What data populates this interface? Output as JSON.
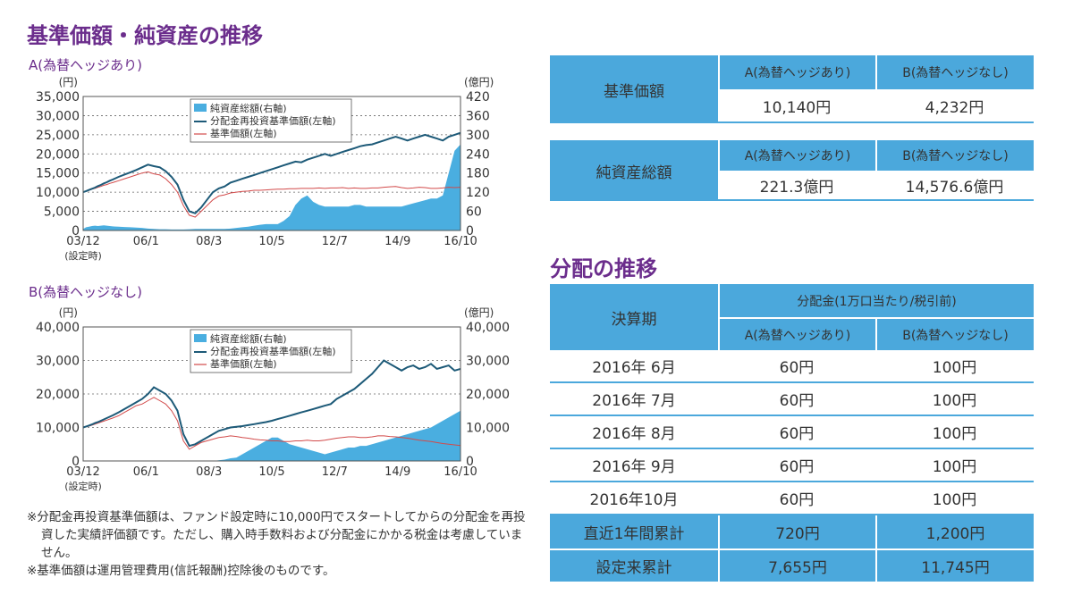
{
  "page": {
    "title1": "基準価額・純資産の推移",
    "title2": "分配の推移",
    "notes": [
      "※分配金再投資基準価額は、ファンド設定時に10,000円でスタートしてからの分配金を再投資した実績評価額です。ただし、購入時手数料および分配金にかかる税金は考慮していません。",
      "※基準価額は運用管理費用(信託報酬)控除後のものです。"
    ]
  },
  "colors": {
    "area": "#4aaee0",
    "reinvest": "#1d5a78",
    "nav": "#d24a4a",
    "header": "#4ba8dc",
    "title": "#6b2d8c"
  },
  "chart_data": [
    {
      "type": "line",
      "label": "A(為替ヘッジあり)",
      "left_unit": "(円)",
      "right_unit": "(億円)",
      "left_ylim": [
        0,
        35000
      ],
      "right_ylim": [
        0,
        420
      ],
      "left_ticks": [
        "0",
        "5,000",
        "10,000",
        "15,000",
        "20,000",
        "25,000",
        "30,000",
        "35,000"
      ],
      "right_ticks": [
        "0",
        "60",
        "120",
        "180",
        "240",
        "300",
        "360",
        "420"
      ],
      "x_ticks": [
        "03/12",
        "06/1",
        "08/3",
        "10/5",
        "12/7",
        "14/9",
        "16/10"
      ],
      "x_sub": "(設定時)",
      "legend": [
        "純資産総額(右軸)",
        "分配金再投資基準価額(左軸)",
        "基準価額(左軸)"
      ],
      "x": [
        0,
        0.1,
        0.2,
        0.3,
        0.4,
        0.5,
        0.6,
        0.7,
        0.8,
        0.9,
        1,
        1.2,
        1.4,
        1.6,
        1.8,
        2,
        2.2,
        2.4,
        2.6,
        2.8,
        3,
        3.2,
        3.4,
        3.6,
        3.8,
        4,
        4.2,
        4.4,
        4.6,
        4.8,
        5,
        5.2,
        5.4,
        5.6,
        5.8,
        6,
        6.2,
        6.4,
        6.6,
        6.8,
        7,
        7.2,
        7.4,
        7.6,
        7.8,
        8,
        8.2,
        8.4,
        8.6,
        8.8,
        9,
        9.2,
        9.4,
        9.6,
        9.8,
        10,
        10.2,
        10.4,
        10.6,
        10.8,
        11,
        11.2,
        11.4,
        11.6,
        11.8,
        12,
        12.2,
        12.4,
        12.6,
        12.8
      ],
      "series": [
        {
          "name": "純資産総額(右軸)",
          "axis": "right",
          "values": [
            5,
            10,
            12,
            14,
            15,
            14,
            15,
            16,
            15,
            14,
            13,
            12,
            11,
            10,
            9,
            8,
            6,
            5,
            4,
            4,
            3,
            3,
            3,
            4,
            5,
            5,
            5,
            5,
            5,
            5,
            6,
            8,
            10,
            12,
            15,
            18,
            20,
            20,
            20,
            30,
            45,
            80,
            100,
            110,
            90,
            80,
            75,
            75,
            75,
            75,
            75,
            80,
            80,
            75,
            75,
            75,
            75,
            75,
            75,
            75,
            80,
            85,
            90,
            95,
            100,
            100,
            110,
            180,
            250,
            270
          ]
        },
        {
          "name": "分配金再投資基準価額(左軸)",
          "axis": "left",
          "values": [
            10000,
            10300,
            10600,
            10900,
            11200,
            11600,
            11900,
            12300,
            12600,
            13000,
            13300,
            14000,
            14600,
            15200,
            15800,
            16500,
            17200,
            16800,
            16500,
            15500,
            14000,
            12000,
            8000,
            5000,
            4500,
            6000,
            8000,
            10000,
            11000,
            11500,
            12500,
            13000,
            13500,
            14000,
            14500,
            15000,
            15500,
            16000,
            16500,
            17000,
            17500,
            18000,
            17800,
            18500,
            19000,
            19500,
            20000,
            19500,
            20000,
            20500,
            21000,
            21500,
            22000,
            22300,
            22500,
            23000,
            23500,
            24000,
            24500,
            24000,
            23500,
            24000,
            24500,
            25000,
            24500,
            24000,
            23500,
            24500,
            25000,
            25500
          ]
        },
        {
          "name": "基準価額(左軸)",
          "axis": "left",
          "values": [
            10000,
            10200,
            10500,
            10800,
            11000,
            11300,
            11500,
            11800,
            12000,
            12300,
            12500,
            13000,
            13500,
            14000,
            14500,
            15000,
            15300,
            14800,
            14500,
            13500,
            12000,
            10000,
            6500,
            4000,
            3500,
            5000,
            6500,
            8000,
            9000,
            9300,
            9800,
            10000,
            10200,
            10300,
            10500,
            10500,
            10600,
            10700,
            10800,
            10800,
            10900,
            10900,
            11000,
            11000,
            11000,
            11100,
            11000,
            11100,
            11100,
            11200,
            11000,
            11100,
            11000,
            11000,
            11100,
            11100,
            11300,
            11400,
            11500,
            11200,
            11000,
            11100,
            11300,
            11200,
            11000,
            11000,
            11100,
            11300,
            11200,
            11300
          ]
        }
      ]
    },
    {
      "type": "line",
      "label": "B(為替ヘッジなし)",
      "left_unit": "(円)",
      "right_unit": "(億円)",
      "left_ylim": [
        0,
        40000
      ],
      "right_ylim": [
        0,
        40000
      ],
      "left_ticks": [
        "0",
        "10,000",
        "20,000",
        "30,000",
        "40,000"
      ],
      "right_ticks": [
        "0",
        "10,000",
        "20,000",
        "30,000",
        "40,000"
      ],
      "x_ticks": [
        "03/12",
        "06/1",
        "08/3",
        "10/5",
        "12/7",
        "14/9",
        "16/10"
      ],
      "x_sub": "(設定時)",
      "legend": [
        "純資産総額(右軸)",
        "分配金再投資基準価額(左軸)",
        "基準価額(左軸)"
      ],
      "x": [
        0,
        0.1,
        0.2,
        0.3,
        0.4,
        0.5,
        0.6,
        0.7,
        0.8,
        0.9,
        1,
        1.2,
        1.4,
        1.6,
        1.8,
        2,
        2.2,
        2.4,
        2.6,
        2.8,
        3,
        3.2,
        3.4,
        3.6,
        3.8,
        4,
        4.2,
        4.4,
        4.6,
        4.8,
        5,
        5.2,
        5.4,
        5.6,
        5.8,
        6,
        6.2,
        6.4,
        6.6,
        6.8,
        7,
        7.2,
        7.4,
        7.6,
        7.8,
        8,
        8.2,
        8.4,
        8.6,
        8.8,
        9,
        9.2,
        9.4,
        9.6,
        9.8,
        10,
        10.2,
        10.4,
        10.6,
        10.8,
        11,
        11.2,
        11.4,
        11.6,
        11.8,
        12,
        12.2,
        12.4,
        12.6,
        12.8
      ],
      "series": [
        {
          "name": "純資産総額(右軸)",
          "axis": "right",
          "values": [
            0,
            0,
            0,
            0,
            0,
            0,
            0,
            0,
            0,
            0,
            0,
            0,
            0,
            0,
            0,
            0,
            0,
            0,
            0,
            0,
            0,
            0,
            0,
            0,
            0,
            0,
            0,
            0,
            200,
            400,
            800,
            1000,
            2000,
            3000,
            4000,
            5000,
            6000,
            7000,
            7000,
            6000,
            5000,
            4500,
            4000,
            3500,
            3000,
            2500,
            2000,
            2500,
            3000,
            3500,
            4000,
            4000,
            4500,
            4500,
            5000,
            5500,
            6000,
            6500,
            7000,
            7500,
            8000,
            8500,
            9000,
            9500,
            10000,
            11000,
            12000,
            13000,
            14000,
            15000
          ]
        },
        {
          "name": "分配金再投資基準価額(左軸)",
          "axis": "left",
          "values": [
            10000,
            10300,
            10600,
            10900,
            11300,
            11600,
            12000,
            12400,
            12800,
            13200,
            13600,
            14500,
            15500,
            16500,
            17500,
            18500,
            20000,
            22000,
            21000,
            20000,
            18000,
            15000,
            8000,
            4500,
            5000,
            6000,
            7000,
            8000,
            9000,
            9500,
            10000,
            10200,
            10400,
            10700,
            11000,
            11300,
            11600,
            12000,
            12500,
            13000,
            13500,
            14000,
            14500,
            15000,
            15500,
            16000,
            16500,
            17000,
            18500,
            19500,
            20500,
            21500,
            23000,
            24500,
            26000,
            28000,
            30000,
            29000,
            28000,
            27000,
            28000,
            28500,
            27500,
            28000,
            29000,
            27500,
            28000,
            28500,
            27000,
            27500
          ]
        },
        {
          "name": "基準価額(左軸)",
          "axis": "left",
          "values": [
            10000,
            10200,
            10400,
            10700,
            11000,
            11300,
            11600,
            11900,
            12200,
            12500,
            12800,
            13500,
            14500,
            15500,
            16500,
            17000,
            18000,
            19000,
            18000,
            17000,
            15000,
            12000,
            6000,
            3500,
            4500,
            5500,
            6000,
            6500,
            7000,
            7200,
            7500,
            7300,
            7000,
            6800,
            6500,
            6300,
            6200,
            6000,
            6000,
            5800,
            5800,
            6000,
            6000,
            6200,
            6000,
            6000,
            6200,
            6500,
            6800,
            7000,
            7200,
            7200,
            7000,
            7000,
            7200,
            7500,
            7500,
            7300,
            7200,
            7000,
            6800,
            6500,
            6200,
            6000,
            5800,
            5500,
            5200,
            5000,
            4800,
            4600
          ]
        }
      ]
    }
  ],
  "table1": {
    "col_a": "A(為替ヘッジあり)",
    "col_b": "B(為替ヘッジなし)",
    "rows": [
      {
        "label": "基準価額",
        "a": "10,140円",
        "b": "4,232円"
      },
      {
        "label": "純資産総額",
        "a": "221.3億円",
        "b": "14,576.6億円"
      }
    ]
  },
  "table2": {
    "period_header": "決算期",
    "dist_header": "分配金(1万口当たり/税引前)",
    "col_a": "A(為替ヘッジあり)",
    "col_b": "B(為替ヘッジなし)",
    "rows": [
      {
        "period": "2016年 6月",
        "a": "60円",
        "b": "100円"
      },
      {
        "period": "2016年 7月",
        "a": "60円",
        "b": "100円"
      },
      {
        "period": "2016年 8月",
        "a": "60円",
        "b": "100円"
      },
      {
        "period": "2016年 9月",
        "a": "60円",
        "b": "100円"
      },
      {
        "period": "2016年10月",
        "a": "60円",
        "b": "100円"
      }
    ],
    "summary": [
      {
        "label": "直近1年間累計",
        "a": "720円",
        "b": "1,200円"
      },
      {
        "label": "設定来累計",
        "a": "7,655円",
        "b": "11,745円"
      }
    ]
  }
}
